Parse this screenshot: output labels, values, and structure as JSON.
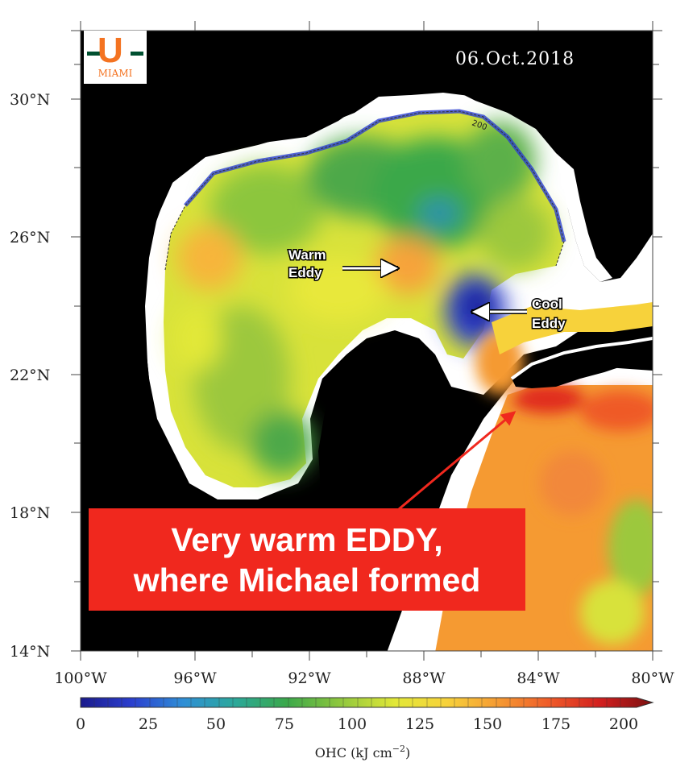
{
  "map": {
    "date": "06.Oct.2018",
    "lat_ticks": [
      "30°N",
      "26°N",
      "22°N",
      "18°N",
      "14°N"
    ],
    "lon_ticks": [
      "100°W",
      "96°W",
      "92°W",
      "88°W",
      "84°W",
      "80°W"
    ],
    "contour_label": "200",
    "annotations": {
      "warm_eddy": [
        "Warm",
        "Eddy"
      ],
      "cool_eddy": [
        "Cool",
        "Eddy"
      ]
    },
    "callout": {
      "line1": "Very warm EDDY,",
      "line2": "where Michael formed",
      "box_color": "#f0281e",
      "arrow_color": "#f0281e"
    }
  },
  "logo": {
    "letter": "U",
    "text": "MIAMI",
    "orange": "#f47321",
    "green": "#005030"
  },
  "colorbar": {
    "ticks": [
      "0",
      "25",
      "50",
      "75",
      "100",
      "125",
      "150",
      "175",
      "200"
    ],
    "label": "OHC (kJ cm",
    "label_exp": "−2",
    "label_close": ")",
    "colors": [
      "#1a1a8c",
      "#2b3fcf",
      "#2f8fd6",
      "#2ba89a",
      "#3aa84a",
      "#8cc63e",
      "#e2e838",
      "#f7d23b",
      "#f59a32",
      "#ef5a28",
      "#d11e1e",
      "#7a1010"
    ]
  }
}
